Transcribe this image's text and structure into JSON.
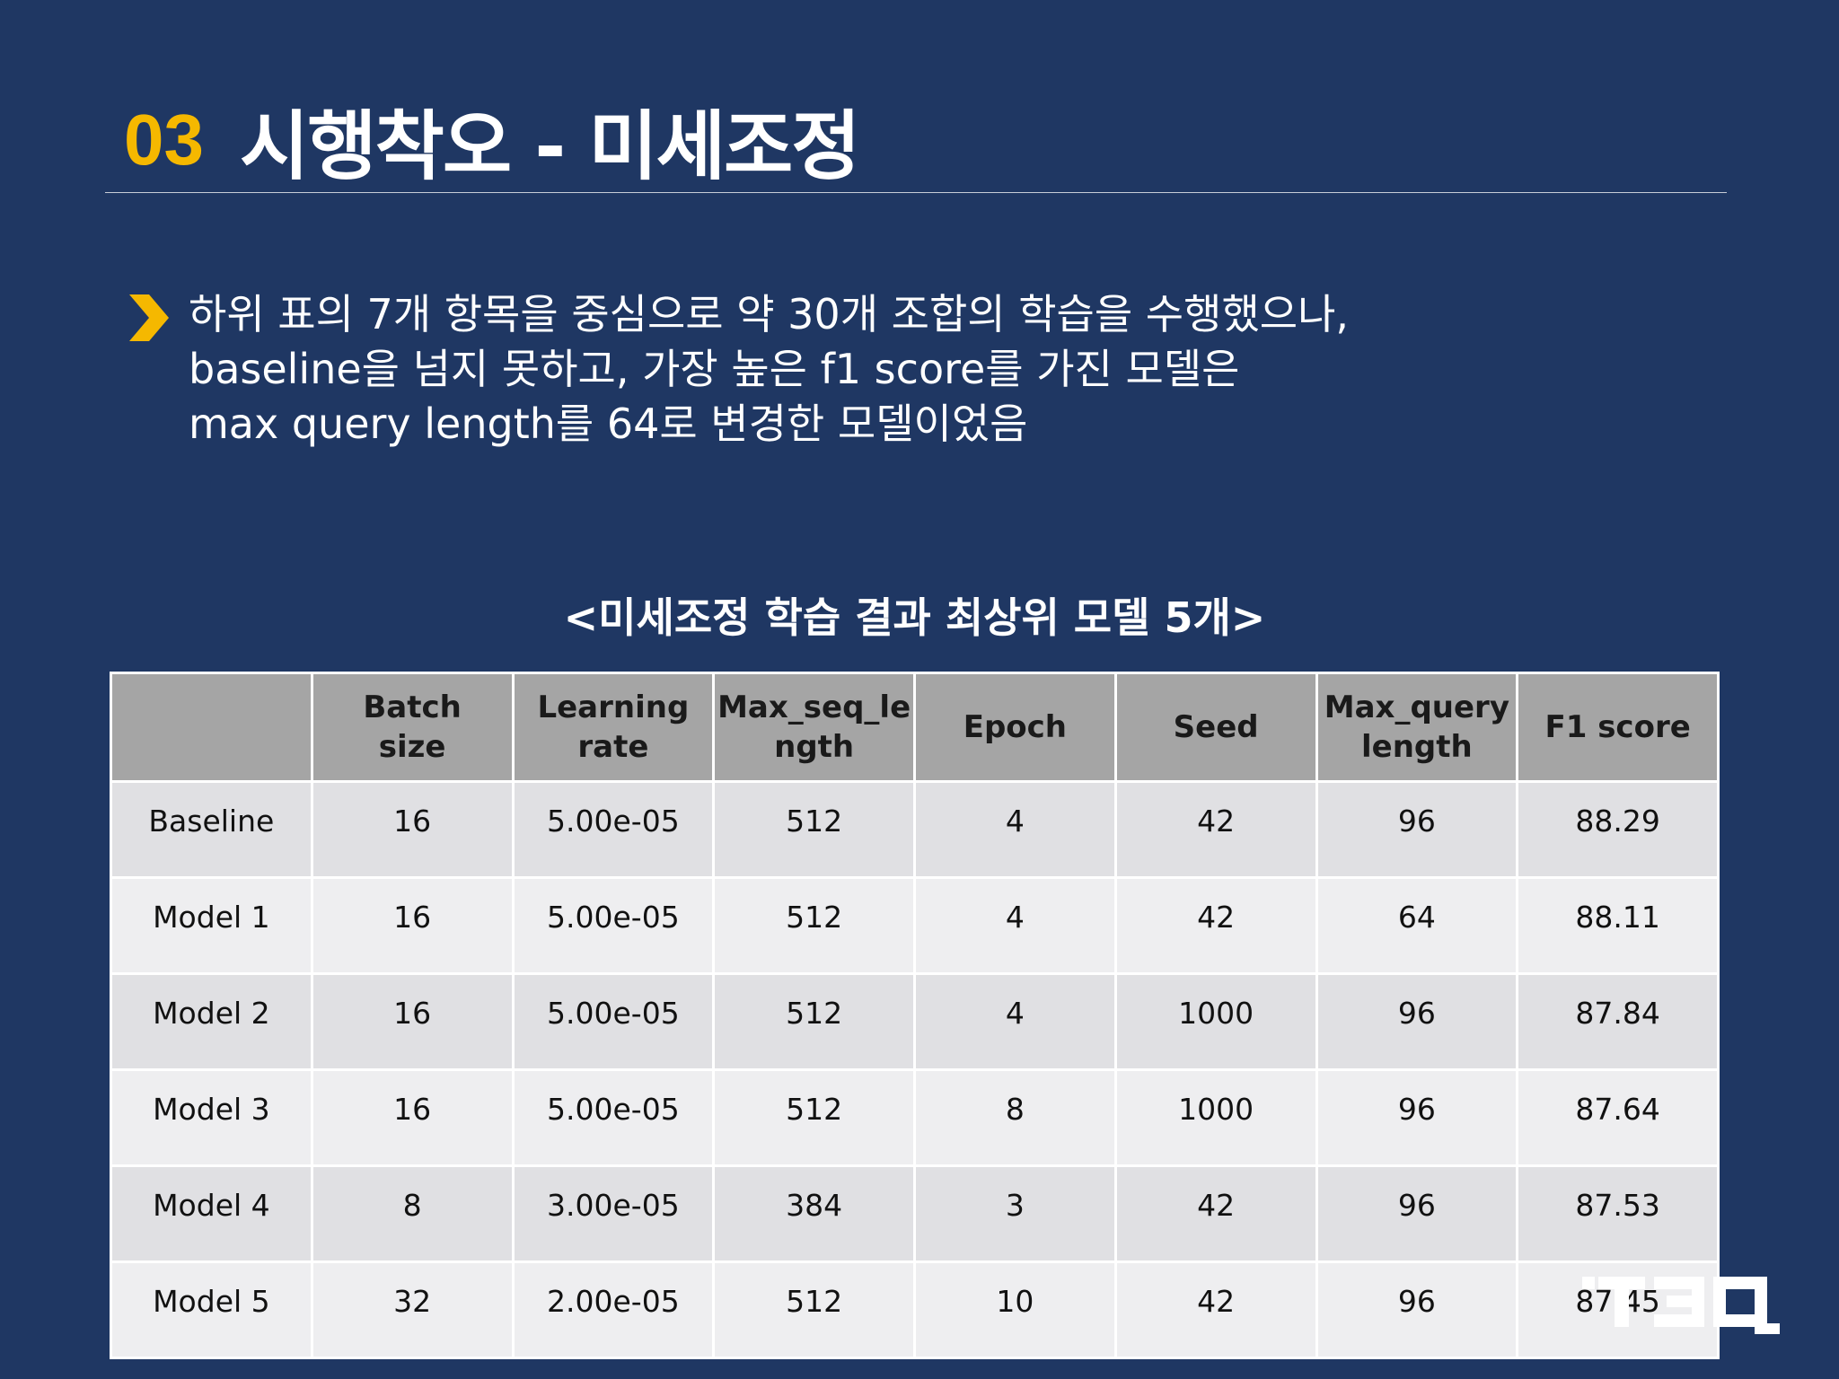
{
  "title": {
    "number": "03",
    "text": "시행착오 - 미세조정"
  },
  "bullet": {
    "lines": [
      "하위 표의 7개 항목을 중심으로 약 30개 조합의 학습을 수행했으나,",
      "baseline을 넘지 못하고, 가장 높은 f1 score를 가진 모델은",
      "max query length를 64로 변경한 모델이었음"
    ]
  },
  "table": {
    "caption": "<미세조정 학습 결과 최상위 모델 5개>",
    "headers": [
      [
        "",
        ""
      ],
      [
        "Batch",
        "size"
      ],
      [
        "Learning",
        "rate"
      ],
      [
        "Max_seq_le",
        "ngth"
      ],
      [
        "Epoch",
        ""
      ],
      [
        "Seed",
        ""
      ],
      [
        "Max_query",
        "length"
      ],
      [
        "F1 score",
        ""
      ]
    ],
    "rows": [
      [
        "Baseline",
        "16",
        "5.00e-05",
        "512",
        "4",
        "42",
        "96",
        "88.29"
      ],
      [
        "Model 1",
        "16",
        "5.00e-05",
        "512",
        "4",
        "42",
        "64",
        "88.11"
      ],
      [
        "Model 2",
        "16",
        "5.00e-05",
        "512",
        "4",
        "1000",
        "96",
        "87.84"
      ],
      [
        "Model 3",
        "16",
        "5.00e-05",
        "512",
        "8",
        "1000",
        "96",
        "87.64"
      ],
      [
        "Model 4",
        "8",
        "3.00e-05",
        "384",
        "3",
        "42",
        "96",
        "87.53"
      ],
      [
        "Model 5",
        "32",
        "2.00e-05",
        "512",
        "10",
        "42",
        "96",
        "87.45"
      ]
    ]
  },
  "colors": {
    "background": "#1f3763",
    "accent": "#f5b800",
    "header_fill": "#a5a5a5",
    "row_fill_a": "#e0e0e3",
    "row_fill_b": "#eeeef0"
  },
  "logo": {
    "icon": "t3q-logo-icon",
    "text": "T3Q"
  }
}
